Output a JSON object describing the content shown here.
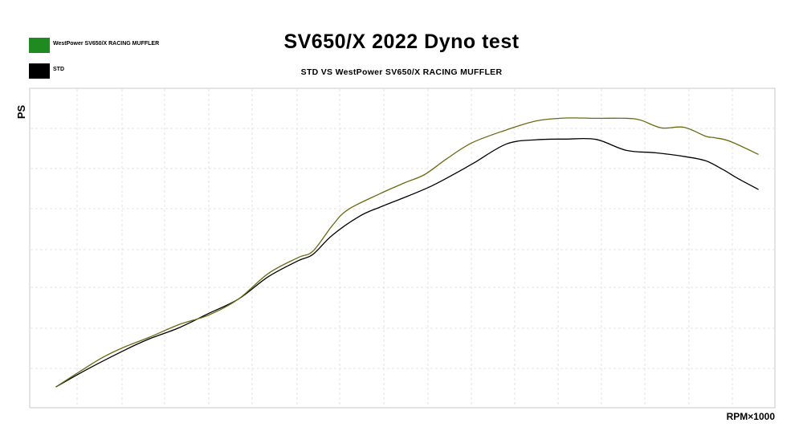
{
  "chart_data": {
    "type": "line",
    "title": "SV650/X 2022 Dyno test",
    "subtitle": "STD VS WestPower SV650/X RACING MUFFLER",
    "ylabel": "PS",
    "xlabel": "RPM×1000",
    "grid": true,
    "legend_position": "top-left",
    "xlim": [
      0,
      100
    ],
    "ylim": [
      0,
      100
    ],
    "series": [
      {
        "name": "WestPower SV650/X RACING MUFFLER",
        "color": "#6b6a12",
        "swatch_color": "#1f8a1f",
        "x": [
          3.5,
          7.5,
          10,
          12.7,
          16,
          20,
          24,
          28,
          32,
          36,
          38,
          40.6,
          42.7,
          47,
          50.4,
          53,
          56,
          59.4,
          64,
          68,
          72,
          76,
          80,
          82,
          84.8,
          87.8,
          90.7,
          92,
          94,
          97.8
        ],
        "y": [
          6.5,
          12.5,
          16,
          19,
          22,
          26,
          29,
          34,
          42,
          47,
          49,
          57,
          62,
          67,
          70.5,
          73,
          78,
          83,
          87,
          89.8,
          90.7,
          90.6,
          90.6,
          90,
          87.6,
          87.8,
          85,
          84.5,
          83.4,
          79.3
        ]
      },
      {
        "name": "STD",
        "color": "#000000",
        "swatch_color": "#000000",
        "x": [
          3.5,
          7.7,
          12.7,
          16,
          20,
          24,
          28,
          32,
          36,
          38,
          40.6,
          44.3,
          47,
          50.8,
          54,
          57,
          59.6,
          64,
          68,
          72,
          76,
          80,
          84,
          88,
          90.7,
          93,
          95,
          97.8
        ],
        "y": [
          6.5,
          12,
          18,
          21.5,
          25,
          29.5,
          34,
          41,
          46,
          48,
          54,
          60,
          62.8,
          66.3,
          69.5,
          73.2,
          76.6,
          82.6,
          83.9,
          84.1,
          84,
          80.6,
          79.8,
          78.6,
          77.3,
          74.6,
          71.8,
          68.3
        ]
      }
    ]
  }
}
